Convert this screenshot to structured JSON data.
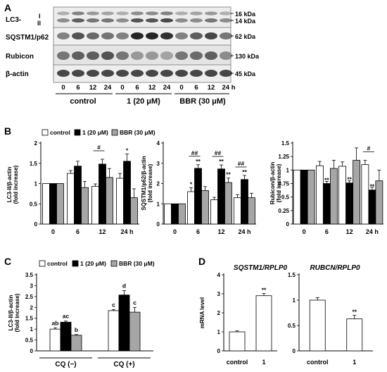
{
  "panels": {
    "A": "A",
    "B": "B",
    "C": "C",
    "D": "D"
  },
  "blot": {
    "rows": [
      {
        "label": "LC3-",
        "band_marks": [
          "I",
          "II"
        ],
        "sizes": [
          "16 kDa",
          "14 kDa"
        ]
      },
      {
        "label": "SQSTM1/p62",
        "sizes": [
          "62 kDa"
        ]
      },
      {
        "label": "Rubicon",
        "sizes": [
          "130 kDa"
        ]
      },
      {
        "label": "β-actin",
        "sizes": [
          "45 kDa"
        ]
      }
    ],
    "time_labels": [
      "0",
      "6",
      "12",
      "24",
      "0",
      "6",
      "12",
      "24",
      "0",
      "6",
      "12",
      "24 h"
    ],
    "group_labels": [
      "control",
      "1 (20 μM)",
      "BBR (30 μM)"
    ]
  },
  "colors": {
    "control": "#ffffff",
    "compound1": "#000000",
    "bbr": "#a6a6a6"
  },
  "chart_data": [
    {
      "panel": "B",
      "type": "bar",
      "legend": [
        "control",
        "1 (20 μM)",
        "BBR (30 μM)"
      ],
      "ylabel": "LC3-II/β-actin (fold increase)",
      "categories": [
        "0",
        "6",
        "12",
        "24 h"
      ],
      "ylim": [
        0,
        2
      ],
      "yticks": [
        "0",
        "0.5",
        "1",
        "1.5",
        "2"
      ],
      "series": [
        {
          "name": "control",
          "values": [
            1.0,
            1.25,
            0.93,
            1.13
          ],
          "errors": [
            0,
            0.07,
            0.06,
            0.12
          ]
        },
        {
          "name": "1 (20 μM)",
          "values": [
            1.0,
            1.43,
            1.48,
            1.55
          ],
          "errors": [
            0,
            0.12,
            0.12,
            0.18
          ]
        },
        {
          "name": "BBR (30 μM)",
          "values": [
            1.0,
            0.9,
            1.15,
            0.65
          ],
          "errors": [
            0,
            0.15,
            0.22,
            0.22
          ]
        }
      ],
      "annotations": [
        {
          "category": 2,
          "series": [
            0,
            1
          ],
          "text": "#"
        },
        {
          "category": 3,
          "series": 1,
          "text": "*"
        }
      ]
    },
    {
      "panel": "B",
      "type": "bar",
      "ylabel": "SQSTM1/p62/β-actin (fold increase)",
      "categories": [
        "0",
        "6",
        "12",
        "24 h"
      ],
      "ylim": [
        0,
        4
      ],
      "yticks": [
        "0",
        "1",
        "2",
        "3",
        "4"
      ],
      "series": [
        {
          "name": "control",
          "values": [
            1.0,
            1.6,
            1.2,
            1.3
          ],
          "errors": [
            0,
            0.2,
            0.12,
            0.15
          ]
        },
        {
          "name": "1 (20 μM)",
          "values": [
            1.0,
            2.75,
            2.72,
            2.2
          ],
          "errors": [
            0,
            0.18,
            0.2,
            0.2
          ]
        },
        {
          "name": "BBR (30 μM)",
          "values": [
            1.0,
            1.65,
            2.05,
            1.3
          ],
          "errors": [
            0,
            0.2,
            0.22,
            0.22
          ]
        }
      ],
      "annotations": [
        {
          "category": 1,
          "series": [
            0,
            1
          ],
          "text": "##"
        },
        {
          "category": 2,
          "series": [
            0,
            1
          ],
          "text": "##"
        },
        {
          "category": 3,
          "series": [
            0,
            1
          ],
          "text": "##"
        },
        {
          "category": 1,
          "series": 0,
          "text": "*"
        },
        {
          "category": 1,
          "series": 1,
          "text": "**"
        },
        {
          "category": 2,
          "series": 1,
          "text": "**"
        },
        {
          "category": 2,
          "series": 2,
          "text": "**"
        },
        {
          "category": 3,
          "series": 1,
          "text": "**"
        }
      ]
    },
    {
      "panel": "B",
      "type": "bar",
      "ylabel": "Rubicon/β-actin (fold increase)",
      "categories": [
        "0",
        "6",
        "12",
        "24 h"
      ],
      "ylim": [
        0,
        1.5
      ],
      "yticks": [
        "0",
        "0.25",
        "0.5",
        "0.75",
        "1",
        "1.25",
        "1.5"
      ],
      "series": [
        {
          "name": "control",
          "values": [
            1.0,
            1.08,
            1.07,
            1.1
          ],
          "errors": [
            0,
            0.08,
            0.08,
            0.08
          ]
        },
        {
          "name": "1 (20 μM)",
          "values": [
            1.0,
            0.75,
            0.76,
            0.63
          ],
          "errors": [
            0,
            0.04,
            0.04,
            0.05
          ]
        },
        {
          "name": "BBR (30 μM)",
          "values": [
            1.0,
            1.03,
            1.18,
            0.8
          ],
          "errors": [
            0,
            0.15,
            0.23,
            0.2
          ]
        }
      ],
      "annotations": [
        {
          "category": 3,
          "series": [
            0,
            1
          ],
          "text": "#"
        },
        {
          "category": 1,
          "series": 1,
          "text": "**"
        },
        {
          "category": 2,
          "series": 1,
          "text": "**"
        },
        {
          "category": 3,
          "series": 1,
          "text": "**"
        }
      ]
    },
    {
      "panel": "C",
      "type": "bar",
      "legend": [
        "control",
        "1 (20 μM)",
        "BBR (30 μM)"
      ],
      "ylabel": "LC3-II/β-actin (fold increase)",
      "categories": [
        "CQ (−)",
        "CQ (+)"
      ],
      "ylim": [
        0,
        3.5
      ],
      "yticks": [
        "0",
        "0.5",
        "1",
        "1.5",
        "2",
        "2.5",
        "3",
        "3.5"
      ],
      "series": [
        {
          "name": "control",
          "values": [
            1.0,
            1.85
          ],
          "errors": [
            0.06,
            0.05
          ],
          "letters": [
            "ab",
            "c"
          ]
        },
        {
          "name": "1 (20 μM)",
          "values": [
            1.32,
            2.57
          ],
          "errors": [
            0.05,
            0.2
          ],
          "letters": [
            "ac",
            "d"
          ]
        },
        {
          "name": "BBR (30 μM)",
          "values": [
            0.72,
            1.78
          ],
          "errors": [
            0.03,
            0.22
          ],
          "letters": [
            "b",
            "c"
          ]
        }
      ]
    },
    {
      "panel": "D",
      "type": "bar",
      "title": "SQSTM1/RPLP0",
      "ylabel": "mRNA level",
      "categories": [
        "control",
        "1"
      ],
      "ylim": [
        0,
        4
      ],
      "yticks": [
        "0",
        "1",
        "2",
        "3",
        "4"
      ],
      "series": [
        {
          "values": [
            1.0,
            2.9
          ],
          "errors": [
            0.05,
            0.12
          ]
        }
      ],
      "annotations": [
        {
          "category": 1,
          "text": "**"
        }
      ]
    },
    {
      "panel": "D",
      "type": "bar",
      "title": "RUBCN/RPLP0",
      "categories": [
        "control",
        "1"
      ],
      "ylim": [
        0,
        1.5
      ],
      "yticks": [
        "0",
        "0.5",
        "1",
        "1.5"
      ],
      "series": [
        {
          "values": [
            1.0,
            0.63
          ],
          "errors": [
            0.05,
            0.07
          ]
        }
      ],
      "annotations": [
        {
          "category": 1,
          "text": "**"
        }
      ]
    }
  ]
}
